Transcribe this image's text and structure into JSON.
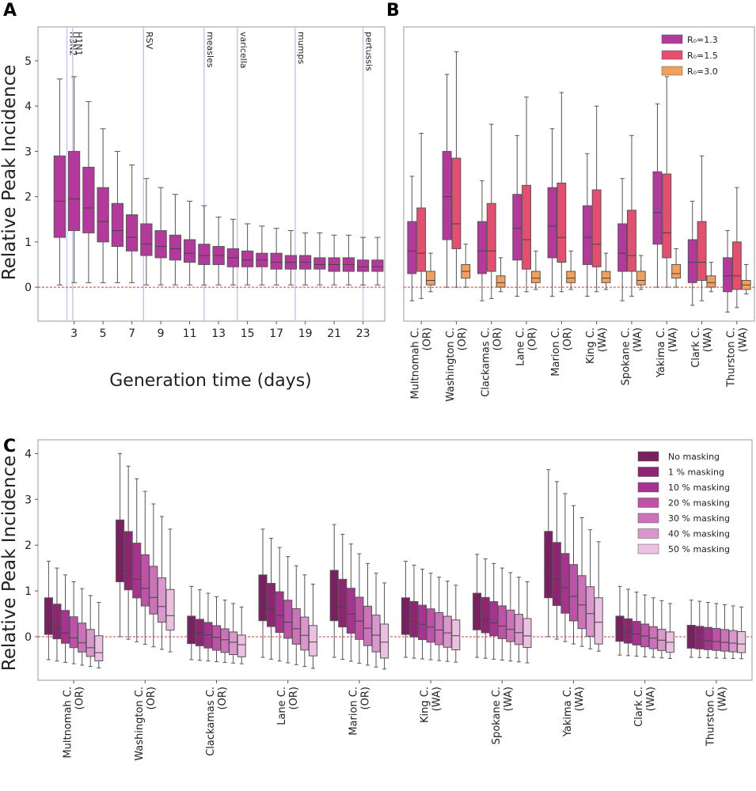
{
  "chart_data": [
    {
      "panel": "A",
      "type": "box",
      "xlabel": "Generation time (days)",
      "ylabel": "Relative Peak Incidence",
      "ylim": [
        -0.75,
        5.75
      ],
      "yticks": [
        0,
        1,
        2,
        3,
        4,
        5
      ],
      "xlim": [
        0.5,
        24.5
      ],
      "xticks": [
        3,
        5,
        7,
        9,
        11,
        13,
        15,
        17,
        19,
        21,
        23
      ],
      "reference_line_y": 0,
      "boxes": [
        {
          "x": 2,
          "whislo": 0.05,
          "q1": 1.1,
          "med": 1.9,
          "q3": 2.9,
          "whishi": 4.6
        },
        {
          "x": 3,
          "whislo": 0.1,
          "q1": 1.25,
          "med": 1.95,
          "q3": 3.0,
          "whishi": 4.65
        },
        {
          "x": 4,
          "whislo": 0.1,
          "q1": 1.2,
          "med": 1.75,
          "q3": 2.65,
          "whishi": 4.1
        },
        {
          "x": 5,
          "whislo": 0.1,
          "q1": 1.0,
          "med": 1.45,
          "q3": 2.2,
          "whishi": 3.5
        },
        {
          "x": 6,
          "whislo": 0.1,
          "q1": 0.9,
          "med": 1.25,
          "q3": 1.85,
          "whishi": 3.0
        },
        {
          "x": 7,
          "whislo": 0.1,
          "q1": 0.8,
          "med": 1.1,
          "q3": 1.6,
          "whishi": 2.7
        },
        {
          "x": 8,
          "whislo": 0.05,
          "q1": 0.7,
          "med": 0.95,
          "q3": 1.4,
          "whishi": 2.4
        },
        {
          "x": 9,
          "whislo": 0.05,
          "q1": 0.65,
          "med": 0.9,
          "q3": 1.25,
          "whishi": 2.2
        },
        {
          "x": 10,
          "whislo": 0.05,
          "q1": 0.6,
          "med": 0.85,
          "q3": 1.15,
          "whishi": 2.05
        },
        {
          "x": 11,
          "whislo": 0.05,
          "q1": 0.55,
          "med": 0.75,
          "q3": 1.05,
          "whishi": 1.9
        },
        {
          "x": 12,
          "whislo": 0.05,
          "q1": 0.5,
          "med": 0.7,
          "q3": 0.95,
          "whishi": 1.8
        },
        {
          "x": 13,
          "whislo": 0.05,
          "q1": 0.5,
          "med": 0.7,
          "q3": 0.9,
          "whishi": 1.55
        },
        {
          "x": 14,
          "whislo": 0.05,
          "q1": 0.45,
          "med": 0.65,
          "q3": 0.85,
          "whishi": 1.5
        },
        {
          "x": 15,
          "whislo": 0.05,
          "q1": 0.45,
          "med": 0.6,
          "q3": 0.8,
          "whishi": 1.4
        },
        {
          "x": 16,
          "whislo": 0.05,
          "q1": 0.45,
          "med": 0.6,
          "q3": 0.75,
          "whishi": 1.35
        },
        {
          "x": 17,
          "whislo": 0.05,
          "q1": 0.4,
          "med": 0.55,
          "q3": 0.75,
          "whishi": 1.3
        },
        {
          "x": 18,
          "whislo": 0.05,
          "q1": 0.4,
          "med": 0.55,
          "q3": 0.7,
          "whishi": 1.25
        },
        {
          "x": 19,
          "whislo": 0.05,
          "q1": 0.4,
          "med": 0.55,
          "q3": 0.7,
          "whishi": 1.2
        },
        {
          "x": 20,
          "whislo": 0.05,
          "q1": 0.4,
          "med": 0.5,
          "q3": 0.65,
          "whishi": 1.2
        },
        {
          "x": 21,
          "whislo": 0.05,
          "q1": 0.35,
          "med": 0.5,
          "q3": 0.65,
          "whishi": 1.15
        },
        {
          "x": 22,
          "whislo": 0.05,
          "q1": 0.35,
          "med": 0.5,
          "q3": 0.65,
          "whishi": 1.15
        },
        {
          "x": 23,
          "whislo": 0.05,
          "q1": 0.35,
          "med": 0.45,
          "q3": 0.6,
          "whishi": 1.1
        },
        {
          "x": 24,
          "whislo": 0.05,
          "q1": 0.35,
          "med": 0.45,
          "q3": 0.6,
          "whishi": 1.1
        }
      ],
      "box_color": "#b5399c",
      "annotations": [
        {
          "label": "H3N2",
          "x": 2.5
        },
        {
          "label": "H1N1",
          "x": 2.9
        },
        {
          "label": "RSV",
          "x": 7.8
        },
        {
          "label": "measles",
          "x": 12.0
        },
        {
          "label": "varicella",
          "x": 14.3
        },
        {
          "label": "mumps",
          "x": 18.3
        },
        {
          "label": "pertussis",
          "x": 23.0
        }
      ],
      "annotation_line_color": "#c7c7f5"
    },
    {
      "panel": "B",
      "type": "box",
      "ylim": [
        -0.75,
        5.75
      ],
      "reference_line_y": 0,
      "categories": [
        "Multnomah C.\n(OR)",
        "Washington C.\n(OR)",
        "Clackamas C.\n(OR)",
        "Lane C.\n(OR)",
        "Marion C.\n(OR)",
        "King C.\n(WA)",
        "Spokane C.\n(WA)",
        "Yakima C.\n(WA)",
        "Clark C.\n(WA)",
        "Thurston C.\n(WA)"
      ],
      "legend": [
        "R₀=1.3",
        "R₀=1.5",
        "R₀=3.0"
      ],
      "colors": [
        "#b5399c",
        "#e44f70",
        "#f2a05c"
      ],
      "series": [
        {
          "name": "R₀=1.3",
          "boxes": [
            {
              "whislo": -0.3,
              "q1": 0.3,
              "med": 0.8,
              "q3": 1.45,
              "whishi": 2.45
            },
            {
              "whislo": 0.0,
              "q1": 1.05,
              "med": 2.0,
              "q3": 3.0,
              "whishi": 4.7
            },
            {
              "whislo": -0.3,
              "q1": 0.3,
              "med": 0.8,
              "q3": 1.45,
              "whishi": 2.35
            },
            {
              "whislo": -0.2,
              "q1": 0.6,
              "med": 1.3,
              "q3": 2.05,
              "whishi": 3.35
            },
            {
              "whislo": -0.2,
              "q1": 0.65,
              "med": 1.35,
              "q3": 2.2,
              "whishi": 3.5
            },
            {
              "whislo": -0.2,
              "q1": 0.5,
              "med": 1.1,
              "q3": 1.8,
              "whishi": 2.95
            },
            {
              "whislo": -0.3,
              "q1": 0.35,
              "med": 0.75,
              "q3": 1.4,
              "whishi": 2.4
            },
            {
              "whislo": 0.0,
              "q1": 0.95,
              "med": 1.65,
              "q3": 2.55,
              "whishi": 4.05
            },
            {
              "whislo": -0.4,
              "q1": 0.1,
              "med": 0.55,
              "q3": 1.05,
              "whishi": 1.9
            },
            {
              "whislo": -0.55,
              "q1": -0.1,
              "med": 0.25,
              "q3": 0.65,
              "whishi": 1.25
            }
          ]
        },
        {
          "name": "R₀=1.5",
          "boxes": [
            {
              "whislo": -0.25,
              "q1": 0.35,
              "med": 0.75,
              "q3": 1.75,
              "whishi": 3.4
            },
            {
              "whislo": 0.0,
              "q1": 0.85,
              "med": 1.4,
              "q3": 2.85,
              "whishi": 5.2
            },
            {
              "whislo": -0.25,
              "q1": 0.35,
              "med": 0.8,
              "q3": 1.85,
              "whishi": 3.6
            },
            {
              "whislo": -0.1,
              "q1": 0.4,
              "med": 1.05,
              "q3": 2.25,
              "whishi": 4.2
            },
            {
              "whislo": -0.1,
              "q1": 0.55,
              "med": 1.1,
              "q3": 2.3,
              "whishi": 4.3
            },
            {
              "whislo": -0.1,
              "q1": 0.45,
              "med": 0.95,
              "q3": 2.15,
              "whishi": 4.0
            },
            {
              "whislo": -0.2,
              "q1": 0.35,
              "med": 0.7,
              "q3": 1.7,
              "whishi": 3.35
            },
            {
              "whislo": 0.0,
              "q1": 0.65,
              "med": 1.2,
              "q3": 2.5,
              "whishi": 4.65
            },
            {
              "whislo": -0.3,
              "q1": 0.15,
              "med": 0.55,
              "q3": 1.45,
              "whishi": 2.9
            },
            {
              "whislo": -0.45,
              "q1": -0.05,
              "med": 0.25,
              "q3": 1.0,
              "whishi": 2.2
            }
          ]
        },
        {
          "name": "R₀=3.0",
          "boxes": [
            {
              "whislo": -0.1,
              "q1": 0.05,
              "med": 0.15,
              "q3": 0.35,
              "whishi": 0.75
            },
            {
              "whislo": 0.0,
              "q1": 0.2,
              "med": 0.35,
              "q3": 0.5,
              "whishi": 0.95
            },
            {
              "whislo": -0.1,
              "q1": 0.0,
              "med": 0.1,
              "q3": 0.25,
              "whishi": 0.65
            },
            {
              "whislo": -0.05,
              "q1": 0.1,
              "med": 0.2,
              "q3": 0.35,
              "whishi": 0.8
            },
            {
              "whislo": -0.05,
              "q1": 0.1,
              "med": 0.2,
              "q3": 0.35,
              "whishi": 0.8
            },
            {
              "whislo": -0.05,
              "q1": 0.1,
              "med": 0.2,
              "q3": 0.35,
              "whishi": 0.75
            },
            {
              "whislo": -0.05,
              "q1": 0.05,
              "med": 0.15,
              "q3": 0.35,
              "whishi": 0.7
            },
            {
              "whislo": 0.0,
              "q1": 0.2,
              "med": 0.3,
              "q3": 0.5,
              "whishi": 0.85
            },
            {
              "whislo": -0.1,
              "q1": 0.0,
              "med": 0.1,
              "q3": 0.25,
              "whishi": 0.55
            },
            {
              "whislo": -0.15,
              "q1": -0.05,
              "med": 0.05,
              "q3": 0.15,
              "whishi": 0.5
            }
          ]
        }
      ]
    },
    {
      "panel": "C",
      "type": "box",
      "ylabel": "Relative Peak Incidence",
      "ylim": [
        -0.95,
        4.3
      ],
      "yticks": [
        0,
        1,
        2,
        3,
        4
      ],
      "reference_line_y": 0,
      "categories": [
        "Multnomah C.\n(OR)",
        "Washington C.\n(OR)",
        "Clackamas C.\n(OR)",
        "Lane C.\n(OR)",
        "Marion C.\n(OR)",
        "King C.\n(WA)",
        "Spokane C.\n(WA)",
        "Yakima C.\n(WA)",
        "Clark C.\n(WA)",
        "Thurston C.\n(WA)"
      ],
      "legend": [
        "No masking",
        "1 % masking",
        "10 % masking",
        "20 % masking",
        "30 % masking",
        "40 % masking",
        "50 % masking"
      ],
      "colors": [
        "#7a2061",
        "#8e2573",
        "#a83290",
        "#bd52a8",
        "#cd72ba",
        "#db97cd",
        "#ebc0e1"
      ],
      "stats": [
        {
          "lo": -0.5,
          "q1": 0.05,
          "med": 0.3,
          "q3": 0.85,
          "hi": 1.65,
          "step": 0.12
        },
        {
          "lo": 0.0,
          "q1": 1.2,
          "med": 1.65,
          "q3": 2.55,
          "hi": 4.0,
          "step": 0.22
        },
        {
          "lo": -0.5,
          "q1": -0.15,
          "med": 0.15,
          "q3": 0.45,
          "hi": 1.1,
          "step": 0.06
        },
        {
          "lo": -0.45,
          "q1": 0.35,
          "med": 0.75,
          "q3": 1.35,
          "hi": 2.35,
          "step": 0.16
        },
        {
          "lo": -0.45,
          "q1": 0.35,
          "med": 0.8,
          "q3": 1.45,
          "hi": 2.45,
          "step": 0.17
        },
        {
          "lo": -0.45,
          "q1": 0.05,
          "med": 0.4,
          "q3": 0.85,
          "hi": 1.65,
          "step": 0.07
        },
        {
          "lo": -0.45,
          "q1": 0.15,
          "med": 0.45,
          "q3": 0.95,
          "hi": 1.8,
          "step": 0.08
        },
        {
          "lo": 0.0,
          "q1": 0.85,
          "med": 1.45,
          "q3": 2.3,
          "hi": 3.65,
          "step": 0.21
        },
        {
          "lo": -0.4,
          "q1": -0.1,
          "med": 0.15,
          "q3": 0.45,
          "hi": 1.1,
          "step": 0.05
        },
        {
          "lo": -0.45,
          "q1": -0.25,
          "med": -0.05,
          "q3": 0.25,
          "hi": 0.8,
          "step": 0.02
        }
      ]
    }
  ]
}
